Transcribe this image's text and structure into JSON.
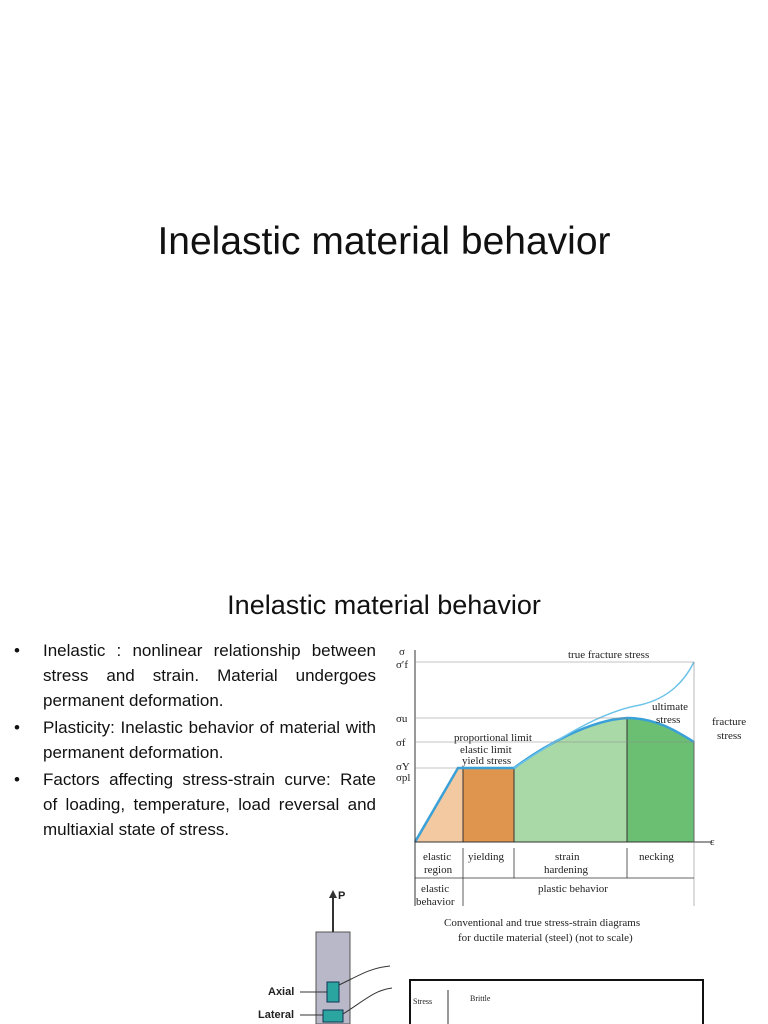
{
  "slide1": {
    "title": "Inelastic material behavior"
  },
  "slide2": {
    "title": "Inelastic material behavior",
    "bullets": [
      "Inelastic : nonlinear relationship between stress and strain. Material undergoes permanent deformation.",
      "Plasticity: Inelastic behavior of material with permanent deformation.",
      "Factors affecting stress-strain curve: Rate of loading, temperature, load reversal and multiaxial state of stress."
    ],
    "diagram": {
      "axis_symbols": [
        "σ",
        "σ′f",
        "σu",
        "σf",
        "σY",
        "σpl",
        "ε"
      ],
      "labels": [
        "true fracture stress",
        "ultimate",
        "stress",
        "fracture",
        "stress",
        "proportional limit",
        "elastic limit",
        "yield stress"
      ],
      "regions": [
        "elastic",
        "region",
        "yielding",
        "strain",
        "hardening",
        "necking"
      ],
      "behaviors": [
        "elastic",
        "behavior",
        "plastic behavior"
      ],
      "caption": [
        "Conventional and true stress-strain diagrams",
        "for ductile material (steel) (not to scale)"
      ]
    },
    "specimen": {
      "load": "P",
      "gauges": [
        "Axial",
        "Lateral"
      ]
    },
    "inset": {
      "axis": "Stress",
      "curve": "Brittle"
    }
  }
}
